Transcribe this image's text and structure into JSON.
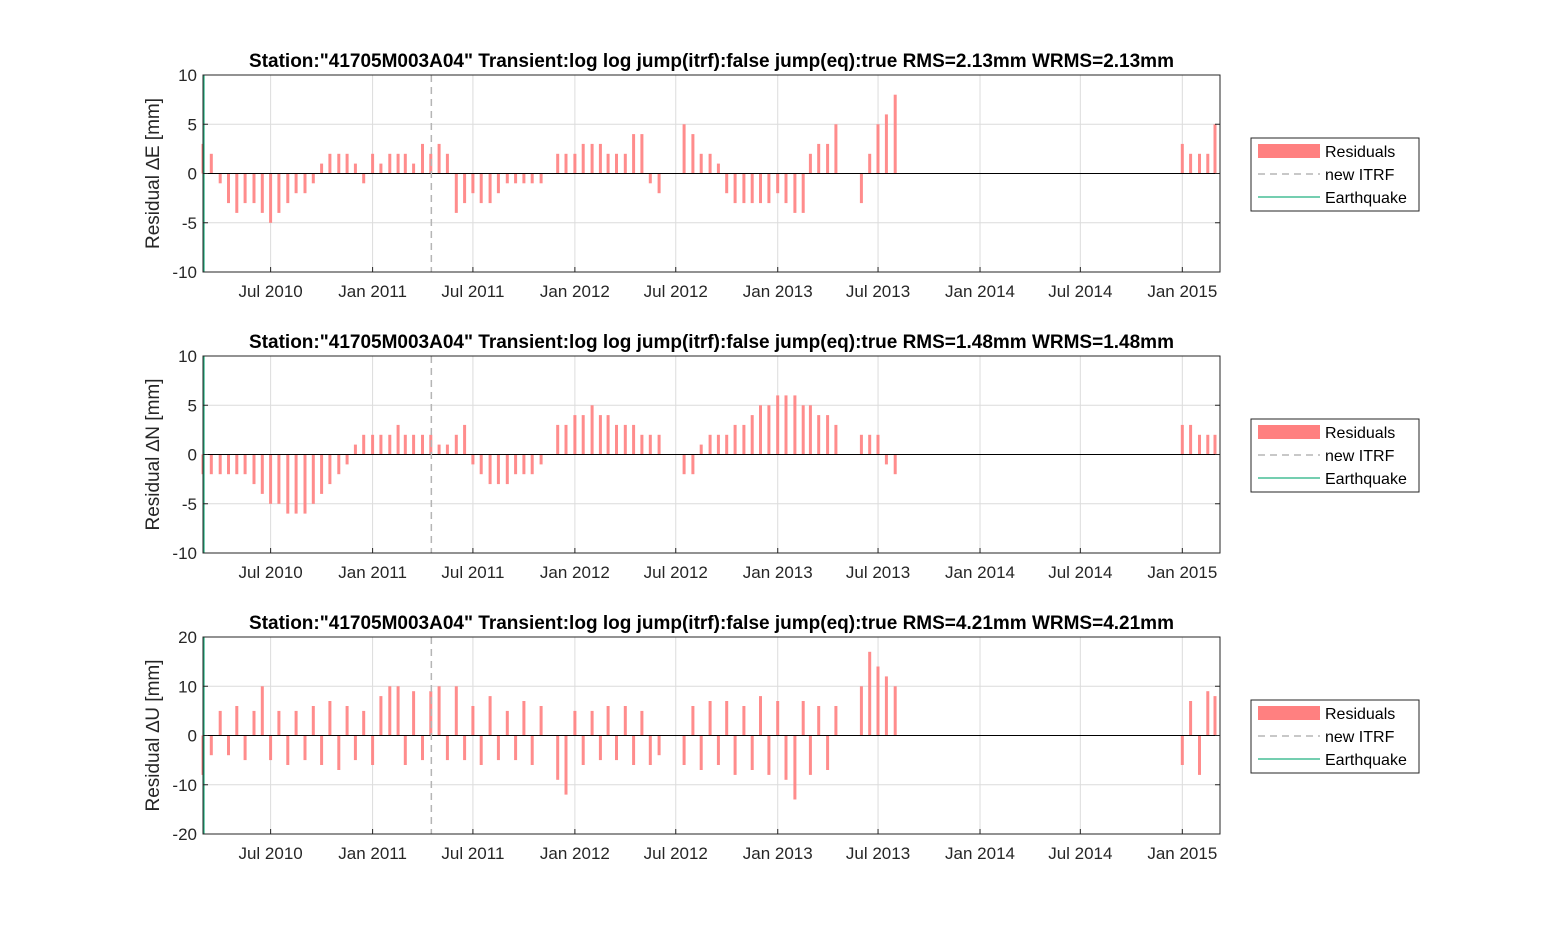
{
  "chart_data": [
    {
      "type": "bar",
      "title": "Station:\"41705M003A04\" Transient:log log jump(itrf):false  jump(eq):true  RMS=2.13mm WRMS=2.13mm",
      "ylabel": "Residual ∆E [mm]",
      "xlabel": "",
      "ylim": [
        -10,
        10
      ],
      "yticks": [
        -10,
        -5,
        0,
        5,
        10
      ],
      "xlim": [
        "2010-03-01",
        "2015-03-10"
      ],
      "xticks": [
        "2010-07-01",
        "2011-01-01",
        "2011-07-01",
        "2012-01-01",
        "2012-07-01",
        "2013-01-01",
        "2013-07-01",
        "2014-01-01",
        "2014-07-01",
        "2015-01-01"
      ],
      "xtick_labels": [
        "Jul 2010",
        "Jan 2011",
        "Jul 2011",
        "Jan 2012",
        "Jul 2012",
        "Jan 2013",
        "Jul 2013",
        "Jan 2014",
        "Jul 2014",
        "Jan 2015"
      ],
      "grid": true,
      "legend_position": "outside-right",
      "new_itrf": "2011-04-17",
      "series": [
        {
          "name": "Residuals",
          "x": [
            "2010-03-01",
            "2010-03-16",
            "2010-04-01",
            "2010-04-16",
            "2010-05-01",
            "2010-05-16",
            "2010-06-01",
            "2010-06-16",
            "2010-07-01",
            "2010-07-16",
            "2010-08-01",
            "2010-08-16",
            "2010-09-01",
            "2010-09-16",
            "2010-10-01",
            "2010-10-16",
            "2010-11-01",
            "2010-11-16",
            "2010-12-01",
            "2010-12-16",
            "2011-01-01",
            "2011-01-16",
            "2011-02-01",
            "2011-02-16",
            "2011-03-01",
            "2011-03-16",
            "2011-04-01",
            "2011-04-16",
            "2011-05-01",
            "2011-05-16",
            "2011-06-01",
            "2011-06-16",
            "2011-07-01",
            "2011-07-16",
            "2011-08-01",
            "2011-08-16",
            "2011-09-01",
            "2011-09-16",
            "2011-10-01",
            "2011-10-16",
            "2011-11-01",
            "2011-12-01",
            "2011-12-16",
            "2012-01-01",
            "2012-01-16",
            "2012-02-01",
            "2012-02-16",
            "2012-03-01",
            "2012-03-16",
            "2012-04-01",
            "2012-04-16",
            "2012-05-01",
            "2012-05-16",
            "2012-06-01",
            "2012-07-16",
            "2012-08-01",
            "2012-08-16",
            "2012-09-01",
            "2012-09-16",
            "2012-10-01",
            "2012-10-16",
            "2012-11-01",
            "2012-11-16",
            "2012-12-01",
            "2012-12-16",
            "2013-01-01",
            "2013-01-16",
            "2013-02-01",
            "2013-02-16",
            "2013-03-01",
            "2013-03-16",
            "2013-04-01",
            "2013-04-16",
            "2013-06-01",
            "2013-06-16",
            "2013-07-01",
            "2013-07-16",
            "2013-08-01",
            "2015-01-01",
            "2015-01-16",
            "2015-02-01",
            "2015-02-16",
            "2015-03-01"
          ],
          "values": [
            3,
            2,
            -1,
            -3,
            -4,
            -3,
            -3,
            -4,
            -5,
            -4,
            -3,
            -2,
            -2,
            -1,
            1,
            2,
            2,
            2,
            1,
            -1,
            2,
            1,
            2,
            2,
            2,
            1,
            3,
            2,
            3,
            2,
            -4,
            -3,
            -2,
            -3,
            -3,
            -2,
            -1,
            -1,
            -1,
            -1,
            -1,
            2,
            2,
            2,
            3,
            3,
            3,
            2,
            2,
            2,
            4,
            4,
            -1,
            -2,
            5,
            4,
            2,
            2,
            1,
            -2,
            -3,
            -3,
            -3,
            -3,
            -3,
            -2,
            -3,
            -4,
            -4,
            2,
            3,
            3,
            5,
            -3,
            2,
            5,
            6,
            8,
            3,
            2,
            2,
            2,
            5
          ],
          "color": "#ff8080"
        },
        {
          "name": "new ITRF"
        },
        {
          "name": "Earthquake"
        }
      ]
    },
    {
      "type": "bar",
      "title": "Station:\"41705M003A04\" Transient:log log jump(itrf):false  jump(eq):true  RMS=1.48mm WRMS=1.48mm",
      "ylabel": "Residual ∆N [mm]",
      "xlabel": "",
      "ylim": [
        -10,
        10
      ],
      "yticks": [
        -10,
        -5,
        0,
        5,
        10
      ],
      "xlim": [
        "2010-03-01",
        "2015-03-10"
      ],
      "xticks": [
        "2010-07-01",
        "2011-01-01",
        "2011-07-01",
        "2012-01-01",
        "2012-07-01",
        "2013-01-01",
        "2013-07-01",
        "2014-01-01",
        "2014-07-01",
        "2015-01-01"
      ],
      "xtick_labels": [
        "Jul 2010",
        "Jan 2011",
        "Jul 2011",
        "Jan 2012",
        "Jul 2012",
        "Jan 2013",
        "Jul 2013",
        "Jan 2014",
        "Jul 2014",
        "Jan 2015"
      ],
      "grid": true,
      "legend_position": "outside-right",
      "new_itrf": "2011-04-17",
      "series": [
        {
          "name": "Residuals",
          "x": [
            "2010-03-01",
            "2010-03-16",
            "2010-04-01",
            "2010-04-16",
            "2010-05-01",
            "2010-05-16",
            "2010-06-01",
            "2010-06-16",
            "2010-07-01",
            "2010-07-16",
            "2010-08-01",
            "2010-08-16",
            "2010-09-01",
            "2010-09-16",
            "2010-10-01",
            "2010-10-16",
            "2010-11-01",
            "2010-11-16",
            "2010-12-01",
            "2010-12-16",
            "2011-01-01",
            "2011-01-16",
            "2011-02-01",
            "2011-02-16",
            "2011-03-01",
            "2011-03-16",
            "2011-04-01",
            "2011-04-16",
            "2011-05-01",
            "2011-05-16",
            "2011-06-01",
            "2011-06-16",
            "2011-07-01",
            "2011-07-16",
            "2011-08-01",
            "2011-08-16",
            "2011-09-01",
            "2011-09-16",
            "2011-10-01",
            "2011-10-16",
            "2011-11-01",
            "2011-12-01",
            "2011-12-16",
            "2012-01-01",
            "2012-01-16",
            "2012-02-01",
            "2012-02-16",
            "2012-03-01",
            "2012-03-16",
            "2012-04-01",
            "2012-04-16",
            "2012-05-01",
            "2012-05-16",
            "2012-06-01",
            "2012-07-16",
            "2012-08-01",
            "2012-08-16",
            "2012-09-01",
            "2012-09-16",
            "2012-10-01",
            "2012-10-16",
            "2012-11-01",
            "2012-11-16",
            "2012-12-01",
            "2012-12-16",
            "2013-01-01",
            "2013-01-16",
            "2013-02-01",
            "2013-02-16",
            "2013-03-01",
            "2013-03-16",
            "2013-04-01",
            "2013-04-16",
            "2013-06-01",
            "2013-06-16",
            "2013-07-01",
            "2013-07-16",
            "2013-08-01",
            "2015-01-01",
            "2015-01-16",
            "2015-02-01",
            "2015-02-16",
            "2015-03-01"
          ],
          "values": [
            -2,
            -2,
            -2,
            -2,
            -2,
            -2,
            -3,
            -4,
            -5,
            -5,
            -6,
            -6,
            -6,
            -5,
            -4,
            -3,
            -2,
            -1,
            1,
            2,
            2,
            2,
            2,
            3,
            2,
            2,
            2,
            2,
            1,
            1,
            2,
            3,
            -1,
            -2,
            -3,
            -3,
            -3,
            -2,
            -2,
            -2,
            -1,
            3,
            3,
            4,
            4,
            5,
            4,
            4,
            3,
            3,
            3,
            2,
            2,
            2,
            -2,
            -2,
            1,
            2,
            2,
            2,
            3,
            3,
            4,
            5,
            5,
            6,
            6,
            6,
            5,
            5,
            4,
            4,
            3,
            2,
            2,
            2,
            -1,
            -2,
            3,
            3,
            2,
            2,
            2
          ],
          "color": "#ff8080"
        },
        {
          "name": "new ITRF"
        },
        {
          "name": "Earthquake"
        }
      ]
    },
    {
      "type": "bar",
      "title": "Station:\"41705M003A04\" Transient:log log jump(itrf):false  jump(eq):true  RMS=4.21mm WRMS=4.21mm",
      "ylabel": "Residual ∆U [mm]",
      "xlabel": "",
      "ylim": [
        -20,
        20
      ],
      "yticks": [
        -20,
        -10,
        0,
        10,
        20
      ],
      "xlim": [
        "2010-03-01",
        "2015-03-10"
      ],
      "xticks": [
        "2010-07-01",
        "2011-01-01",
        "2011-07-01",
        "2012-01-01",
        "2012-07-01",
        "2013-01-01",
        "2013-07-01",
        "2014-01-01",
        "2014-07-01",
        "2015-01-01"
      ],
      "xtick_labels": [
        "Jul 2010",
        "Jan 2011",
        "Jul 2011",
        "Jan 2012",
        "Jul 2012",
        "Jan 2013",
        "Jul 2013",
        "Jan 2014",
        "Jul 2014",
        "Jan 2015"
      ],
      "grid": true,
      "legend_position": "outside-right",
      "new_itrf": "2011-04-17",
      "series": [
        {
          "name": "Residuals",
          "x": [
            "2010-03-01",
            "2010-03-16",
            "2010-04-01",
            "2010-04-16",
            "2010-05-01",
            "2010-05-16",
            "2010-06-01",
            "2010-06-16",
            "2010-07-01",
            "2010-07-16",
            "2010-08-01",
            "2010-08-16",
            "2010-09-01",
            "2010-09-16",
            "2010-10-01",
            "2010-10-16",
            "2010-11-01",
            "2010-11-16",
            "2010-12-01",
            "2010-12-16",
            "2011-01-01",
            "2011-01-16",
            "2011-02-01",
            "2011-02-16",
            "2011-03-01",
            "2011-03-16",
            "2011-04-01",
            "2011-04-16",
            "2011-05-01",
            "2011-05-16",
            "2011-06-01",
            "2011-06-16",
            "2011-07-01",
            "2011-07-16",
            "2011-08-01",
            "2011-08-16",
            "2011-09-01",
            "2011-09-16",
            "2011-10-01",
            "2011-10-16",
            "2011-11-01",
            "2011-12-01",
            "2011-12-16",
            "2012-01-01",
            "2012-01-16",
            "2012-02-01",
            "2012-02-16",
            "2012-03-01",
            "2012-03-16",
            "2012-04-01",
            "2012-04-16",
            "2012-05-01",
            "2012-05-16",
            "2012-06-01",
            "2012-07-16",
            "2012-08-01",
            "2012-08-16",
            "2012-09-01",
            "2012-09-16",
            "2012-10-01",
            "2012-10-16",
            "2012-11-01",
            "2012-11-16",
            "2012-12-01",
            "2012-12-16",
            "2013-01-01",
            "2013-01-16",
            "2013-02-01",
            "2013-02-16",
            "2013-03-01",
            "2013-03-16",
            "2013-04-01",
            "2013-04-16",
            "2013-06-01",
            "2013-06-16",
            "2013-07-01",
            "2013-07-16",
            "2013-08-01",
            "2015-01-01",
            "2015-01-16",
            "2015-02-01",
            "2015-02-16",
            "2015-03-01"
          ],
          "values": [
            -8,
            -4,
            5,
            -4,
            6,
            -5,
            5,
            10,
            -5,
            5,
            -6,
            5,
            -5,
            6,
            -6,
            7,
            -7,
            6,
            -5,
            5,
            -6,
            8,
            10,
            10,
            -6,
            9,
            -5,
            9,
            10,
            -5,
            10,
            -5,
            6,
            -6,
            8,
            -5,
            5,
            -5,
            7,
            -6,
            6,
            -9,
            -12,
            5,
            -6,
            5,
            -5,
            6,
            -5,
            6,
            -6,
            5,
            -6,
            -4,
            -6,
            6,
            -7,
            7,
            -6,
            7,
            -8,
            6,
            -7,
            8,
            -8,
            7,
            -9,
            -13,
            7,
            -8,
            6,
            -7,
            6,
            10,
            17,
            14,
            12,
            10,
            -6,
            7,
            -8,
            9,
            8
          ],
          "color": "#ff8080"
        },
        {
          "name": "new ITRF"
        },
        {
          "name": "Earthquake"
        }
      ]
    }
  ]
}
